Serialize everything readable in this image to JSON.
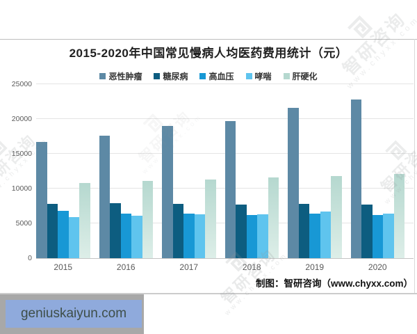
{
  "footer": {
    "credit": "制图：智研咨询（www.chyxx.com）"
  },
  "badge": {
    "text": "geniuskaiyun.com"
  },
  "watermark": {
    "brand": "智研咨询",
    "url": "www.chyxx.com"
  },
  "colors": {
    "series": [
      "#5d89a5",
      "#0d5d80",
      "#1898d5",
      "#5fc4ee",
      "#b5d8cf"
    ],
    "series5_gradient_end": "#ddeee8",
    "badge_bg": "#8faadc",
    "badge_text": "#3e4e48",
    "strip_bg": "#a8a8a8",
    "grid": "#e4e4e4",
    "axis_text": "#595959"
  },
  "chart_data": {
    "type": "bar",
    "title": "2015-2020年中国常见慢病人均医药费用统计（元）",
    "xlabel": "",
    "ylabel": "",
    "categories": [
      "2015",
      "2016",
      "2017",
      "2018",
      "2019",
      "2020"
    ],
    "series": [
      {
        "name": "恶性肿瘤",
        "color": "#5d89a5",
        "values": [
          16700,
          17600,
          19000,
          19700,
          21600,
          22800
        ]
      },
      {
        "name": "糖尿病",
        "color": "#0d5d80",
        "values": [
          7800,
          7900,
          7800,
          7700,
          7800,
          7700
        ]
      },
      {
        "name": "高血压",
        "color": "#1898d5",
        "values": [
          6800,
          6400,
          6400,
          6200,
          6400,
          6200
        ]
      },
      {
        "name": "哮喘",
        "color": "#5fc4ee",
        "values": [
          5900,
          6100,
          6300,
          6300,
          6700,
          6400
        ]
      },
      {
        "name": "肝硬化",
        "color": "#b5d8cf",
        "values": [
          10800,
          11100,
          11300,
          11600,
          11800,
          12100
        ]
      }
    ],
    "ylim": [
      0,
      25000
    ],
    "yticks": [
      0,
      5000,
      10000,
      15000,
      20000,
      25000
    ],
    "grid": true,
    "legend_position": "top"
  }
}
